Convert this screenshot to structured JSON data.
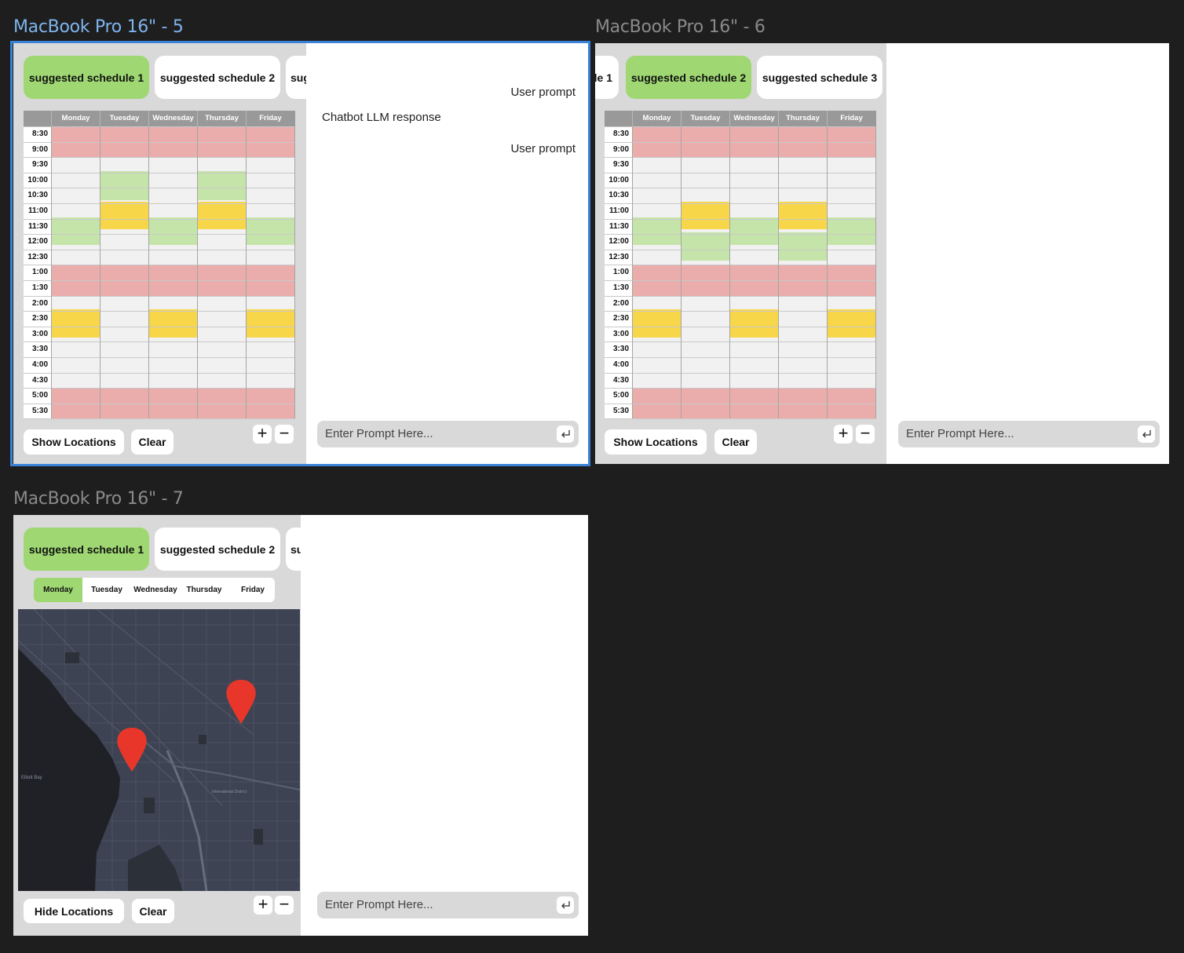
{
  "frames": {
    "f5": {
      "title": "MacBook Pro 16\" - 5"
    },
    "f6": {
      "title": "MacBook Pro 16\" - 6"
    },
    "f7": {
      "title": "MacBook Pro 16\" - 7"
    }
  },
  "tabs": {
    "s1": "suggested schedule 1",
    "s2": "suggested schedule 2",
    "s3": "suggested schedule 3",
    "s3_clipped": "sug",
    "s1_clipped": "le 1"
  },
  "calendar": {
    "days": [
      "Monday",
      "Tuesday",
      "Wednesday",
      "Thursday",
      "Friday"
    ],
    "times": [
      "8:30",
      "9:00",
      "9:30",
      "10:00",
      "10:30",
      "11:00",
      "11:30",
      "12:00",
      "12:30",
      "1:00",
      "1:30",
      "2:00",
      "2:30",
      "3:00",
      "3:30",
      "4:00",
      "4:30",
      "5:00",
      "5:30"
    ]
  },
  "buttons": {
    "show_locations": "Show Locations",
    "hide_locations": "Hide Locations",
    "clear": "Clear",
    "zoom_in": "+",
    "zoom_out": "−"
  },
  "chat": {
    "user_prompt_1": "User prompt",
    "bot_response": "Chatbot LLM response",
    "user_prompt_2": "User prompt",
    "placeholder": "Enter Prompt Here..."
  },
  "map": {
    "labels": {
      "district": "International District",
      "water": "Elliott Bay"
    },
    "pins": 2
  },
  "colors": {
    "active_tab": "#9fd872",
    "busy": "#ebacac",
    "suggested": "#c5e4a9",
    "event": "#f8d64a",
    "selection": "#3a82d8",
    "pin": "#e8372a"
  }
}
